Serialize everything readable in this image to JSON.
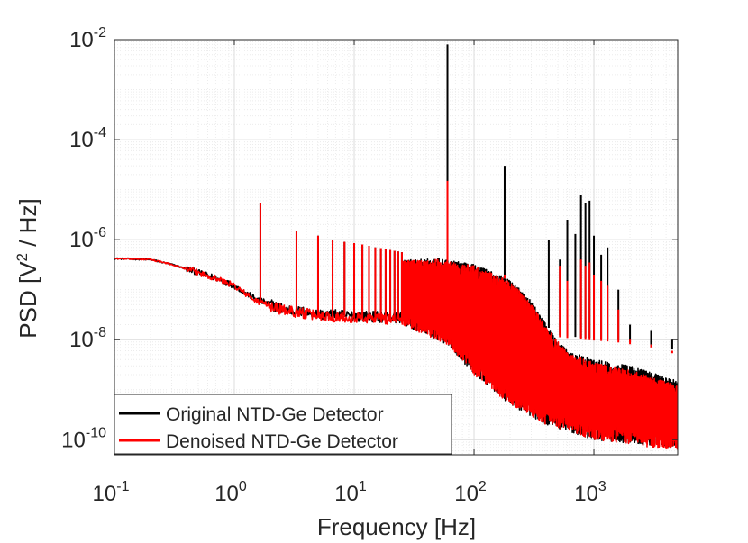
{
  "chart_data": {
    "type": "line",
    "xscale": "log",
    "yscale": "log",
    "xlim": [
      0.1,
      5000
    ],
    "ylim": [
      5e-11,
      0.01
    ],
    "xlabel": "Frequency [Hz]",
    "ylabel": {
      "base": "PSD [V",
      "sup": "2",
      "rest": " / Hz]"
    },
    "x_ticks": [
      {
        "value": 0.1,
        "base": "10",
        "exp": "-1"
      },
      {
        "value": 1,
        "base": "10",
        "exp": "0"
      },
      {
        "value": 10,
        "base": "10",
        "exp": "1"
      },
      {
        "value": 100,
        "base": "10",
        "exp": "2"
      },
      {
        "value": 1000,
        "base": "10",
        "exp": "3"
      }
    ],
    "y_ticks": [
      {
        "value": 1e-10,
        "base": "10",
        "exp": "-10"
      },
      {
        "value": 1e-08,
        "base": "10",
        "exp": "-8"
      },
      {
        "value": 1e-06,
        "base": "10",
        "exp": "-6"
      },
      {
        "value": 0.0001,
        "base": "10",
        "exp": "-4"
      },
      {
        "value": 0.01,
        "base": "10",
        "exp": "-2"
      }
    ],
    "grid": true,
    "legend_position": "bottom-left",
    "series": [
      {
        "name": "Original NTD-Ge Detector",
        "color": "#000000",
        "baseline": [
          [
            0.1,
            4.2e-07
          ],
          [
            0.2,
            4e-07
          ],
          [
            0.3,
            3.2e-07
          ],
          [
            0.5,
            2.2e-07
          ],
          [
            0.7,
            1.7e-07
          ],
          [
            1.0,
            1.2e-07
          ],
          [
            1.5,
            6.5e-08
          ],
          [
            2.5,
            4.2e-08
          ],
          [
            5,
            3.2e-08
          ],
          [
            10,
            3e-08
          ],
          [
            20,
            2.8e-08
          ],
          [
            50,
            2.6e-08
          ],
          [
            100,
            2.2e-08
          ],
          [
            200,
            1.7e-08
          ],
          [
            400,
            1.3e-08
          ],
          [
            800,
            1.1e-08
          ],
          [
            1500,
            1e-08
          ],
          [
            3000,
            8e-09
          ],
          [
            5000,
            6e-09
          ]
        ],
        "envelope": [
          [
            25,
            4e-07
          ],
          [
            50,
            4.2e-07
          ],
          [
            100,
            3.2e-07
          ],
          [
            200,
            1.6e-07
          ],
          [
            300,
            6e-08
          ],
          [
            400,
            2e-08
          ],
          [
            600,
            6e-09
          ],
          [
            1000,
            4e-09
          ],
          [
            2000,
            3e-09
          ],
          [
            5000,
            1.5e-09
          ]
        ],
        "floor": [
          [
            25,
            2e-08
          ],
          [
            60,
            8e-09
          ],
          [
            100,
            2e-09
          ],
          [
            200,
            5e-10
          ],
          [
            400,
            2e-10
          ],
          [
            1000,
            1e-10
          ],
          [
            5000,
            7e-11
          ]
        ],
        "peaks": [
          [
            1.15,
            9e-08
          ],
          [
            1.65,
            5.5e-06
          ],
          [
            3.3,
            1.5e-06
          ],
          [
            5.0,
            1.2e-06
          ],
          [
            6.6,
            1e-06
          ],
          [
            8.3,
            9e-07
          ],
          [
            10,
            8.5e-07
          ],
          [
            11.7,
            8e-07
          ],
          [
            13.3,
            7.5e-07
          ],
          [
            15,
            7e-07
          ],
          [
            16.7,
            6.8e-07
          ],
          [
            18.3,
            6.5e-07
          ],
          [
            20,
            6.2e-07
          ],
          [
            21.7,
            6e-07
          ],
          [
            23.3,
            5.8e-07
          ],
          [
            25,
            5.6e-07
          ],
          [
            60,
            0.008
          ],
          [
            180,
            3e-05
          ],
          [
            420,
            1e-06
          ],
          [
            520,
            4e-07
          ],
          [
            600,
            2.5e-06
          ],
          [
            700,
            1.3e-06
          ],
          [
            780,
            8e-06
          ],
          [
            850,
            5.5e-06
          ],
          [
            920,
            6e-06
          ],
          [
            1000,
            1.2e-06
          ],
          [
            1150,
            5e-07
          ],
          [
            1300,
            7e-07
          ],
          [
            1600,
            1e-07
          ],
          [
            2000,
            2e-08
          ],
          [
            3000,
            1.5e-08
          ],
          [
            4500,
            1e-08
          ]
        ]
      },
      {
        "name": "Denoised NTD-Ge Detector",
        "color": "#ff0000",
        "baseline": [
          [
            0.1,
            4.2e-07
          ],
          [
            0.2,
            4e-07
          ],
          [
            0.3,
            3.2e-07
          ],
          [
            0.5,
            2.2e-07
          ],
          [
            0.7,
            1.7e-07
          ],
          [
            1.0,
            1.2e-07
          ],
          [
            1.5,
            6e-08
          ],
          [
            2.5,
            4e-08
          ],
          [
            5,
            3e-08
          ],
          [
            10,
            2.8e-08
          ],
          [
            20,
            2.6e-08
          ],
          [
            50,
            2.4e-08
          ],
          [
            100,
            2e-08
          ],
          [
            200,
            1.5e-08
          ],
          [
            400,
            1.2e-08
          ],
          [
            800,
            1e-08
          ],
          [
            1500,
            9e-09
          ],
          [
            3000,
            7e-09
          ],
          [
            5000,
            5e-09
          ]
        ],
        "envelope": [
          [
            25,
            3.8e-07
          ],
          [
            50,
            4e-07
          ],
          [
            100,
            3e-07
          ],
          [
            200,
            1.5e-07
          ],
          [
            300,
            5.5e-08
          ],
          [
            400,
            1.8e-08
          ],
          [
            600,
            5.5e-09
          ],
          [
            1000,
            3.5e-09
          ],
          [
            2000,
            2.5e-09
          ],
          [
            5000,
            1.2e-09
          ]
        ],
        "floor": [
          [
            25,
            2e-08
          ],
          [
            60,
            8e-09
          ],
          [
            100,
            2e-09
          ],
          [
            200,
            5e-10
          ],
          [
            400,
            2e-10
          ],
          [
            1000,
            1e-10
          ],
          [
            5000,
            6e-11
          ]
        ],
        "peaks": [
          [
            1.65,
            5.5e-06
          ],
          [
            3.3,
            1.5e-06
          ],
          [
            5.0,
            1.2e-06
          ],
          [
            6.6,
            1e-06
          ],
          [
            8.3,
            9e-07
          ],
          [
            10,
            8.5e-07
          ],
          [
            11.7,
            8e-07
          ],
          [
            13.3,
            7.5e-07
          ],
          [
            15,
            7e-07
          ],
          [
            16.7,
            6.8e-07
          ],
          [
            18.3,
            6.5e-07
          ],
          [
            20,
            6.2e-07
          ],
          [
            21.7,
            6e-07
          ],
          [
            23.3,
            5.8e-07
          ],
          [
            25,
            5.6e-07
          ],
          [
            60,
            1.5e-05
          ],
          [
            180,
            2e-07
          ],
          [
            520,
            3e-07
          ],
          [
            600,
            1.5e-07
          ],
          [
            780,
            4e-07
          ],
          [
            850,
            3e-07
          ],
          [
            920,
            3.5e-07
          ],
          [
            1000,
            2e-07
          ],
          [
            1150,
            1.5e-07
          ],
          [
            1300,
            1.2e-07
          ],
          [
            1600,
            4e-08
          ],
          [
            2000,
            1e-08
          ],
          [
            3000,
            8e-09
          ],
          [
            4500,
            6e-09
          ]
        ]
      }
    ]
  }
}
